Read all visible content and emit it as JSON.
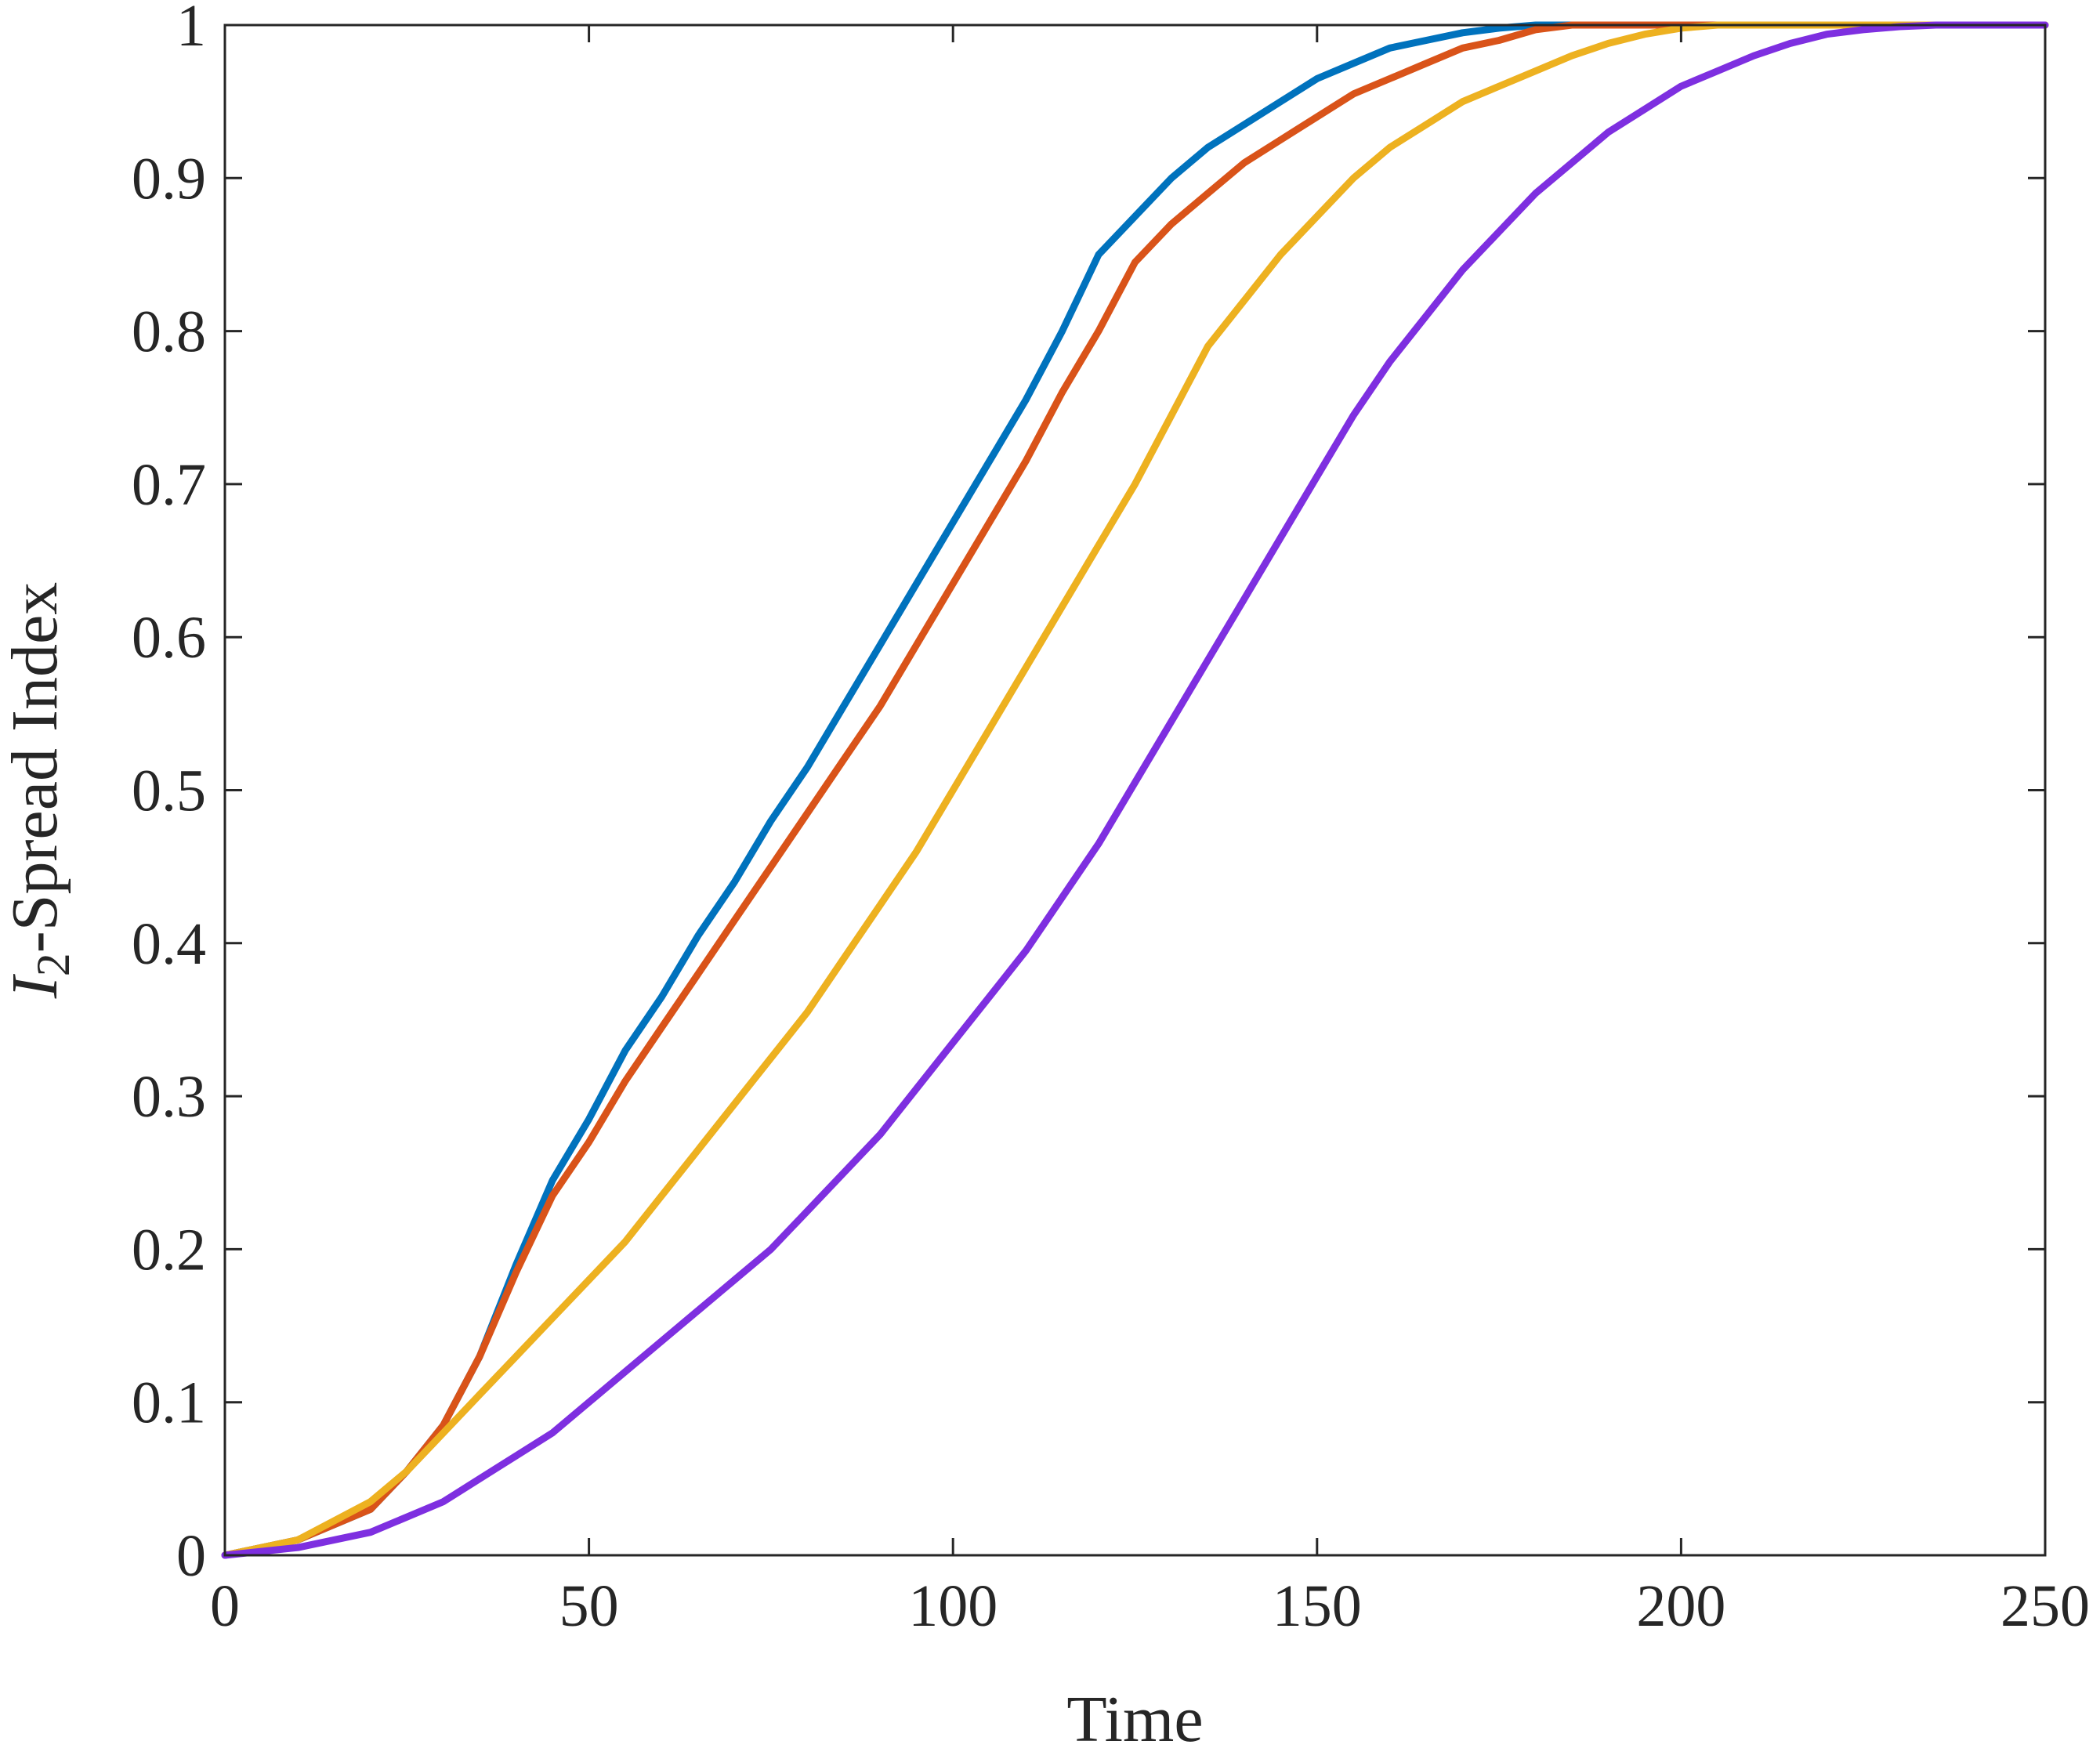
{
  "chart_data": {
    "type": "line",
    "title": "",
    "xlabel": "Time",
    "ylabel": {
      "prefix": "I",
      "subscript": "2",
      "suffix": "-Spread Index"
    },
    "xlim": [
      0,
      250
    ],
    "ylim": [
      0,
      1
    ],
    "x_ticks": [
      0,
      50,
      100,
      150,
      200,
      250
    ],
    "x_tick_labels": [
      "0",
      "50",
      "100",
      "150",
      "200",
      "250"
    ],
    "y_ticks": [
      0,
      0.1,
      0.2,
      0.3,
      0.4,
      0.5,
      0.6,
      0.7,
      0.8,
      0.9,
      1
    ],
    "y_tick_labels": [
      "0",
      "0.1",
      "0.2",
      "0.3",
      "0.4",
      "0.5",
      "0.6",
      "0.7",
      "0.8",
      "0.9",
      "1"
    ],
    "grid": false,
    "legend": null,
    "series": [
      {
        "color": "#0072BD",
        "x": [
          0,
          10,
          20,
          25,
          30,
          35,
          40,
          45,
          50,
          55,
          60,
          65,
          70,
          75,
          80,
          85,
          90,
          95,
          100,
          105,
          110,
          115,
          118,
          120,
          125,
          130,
          135,
          140,
          145,
          150,
          155,
          160,
          165,
          170,
          175,
          180,
          250
        ],
        "y": [
          0,
          0.01,
          0.03,
          0.055,
          0.085,
          0.13,
          0.19,
          0.245,
          0.285,
          0.33,
          0.365,
          0.405,
          0.44,
          0.48,
          0.515,
          0.555,
          0.595,
          0.635,
          0.675,
          0.715,
          0.755,
          0.8,
          0.83,
          0.85,
          0.875,
          0.9,
          0.92,
          0.935,
          0.95,
          0.965,
          0.975,
          0.985,
          0.99,
          0.995,
          0.998,
          1,
          1
        ]
      },
      {
        "color": "#D95319",
        "x": [
          0,
          10,
          20,
          25,
          30,
          35,
          40,
          45,
          50,
          55,
          60,
          65,
          70,
          75,
          80,
          85,
          90,
          95,
          100,
          105,
          110,
          115,
          120,
          125,
          130,
          135,
          140,
          145,
          150,
          155,
          160,
          165,
          170,
          175,
          180,
          185,
          250
        ],
        "y": [
          0,
          0.01,
          0.03,
          0.055,
          0.085,
          0.13,
          0.185,
          0.235,
          0.27,
          0.31,
          0.345,
          0.38,
          0.415,
          0.45,
          0.485,
          0.52,
          0.555,
          0.595,
          0.635,
          0.675,
          0.715,
          0.76,
          0.8,
          0.845,
          0.87,
          0.89,
          0.91,
          0.925,
          0.94,
          0.955,
          0.965,
          0.975,
          0.985,
          0.99,
          0.997,
          1,
          1
        ]
      },
      {
        "color": "#EDB120",
        "x": [
          0,
          10,
          20,
          25,
          30,
          35,
          40,
          45,
          50,
          55,
          60,
          65,
          70,
          75,
          80,
          85,
          90,
          95,
          100,
          105,
          110,
          115,
          120,
          125,
          130,
          135,
          140,
          145,
          150,
          155,
          160,
          165,
          170,
          175,
          180,
          185,
          190,
          195,
          200,
          205,
          210,
          250
        ],
        "y": [
          0,
          0.01,
          0.035,
          0.055,
          0.08,
          0.105,
          0.13,
          0.155,
          0.18,
          0.205,
          0.235,
          0.265,
          0.295,
          0.325,
          0.355,
          0.39,
          0.425,
          0.46,
          0.5,
          0.54,
          0.58,
          0.62,
          0.66,
          0.7,
          0.745,
          0.79,
          0.82,
          0.85,
          0.875,
          0.9,
          0.92,
          0.935,
          0.95,
          0.96,
          0.97,
          0.98,
          0.988,
          0.994,
          0.998,
          1,
          1,
          1
        ]
      },
      {
        "color": "#7E2FE0",
        "x": [
          0,
          10,
          20,
          25,
          30,
          35,
          40,
          45,
          50,
          55,
          60,
          65,
          70,
          75,
          80,
          85,
          90,
          95,
          100,
          105,
          110,
          115,
          120,
          125,
          130,
          135,
          140,
          145,
          150,
          155,
          160,
          165,
          170,
          175,
          180,
          185,
          190,
          195,
          200,
          205,
          210,
          215,
          220,
          225,
          230,
          235,
          240,
          250
        ],
        "y": [
          0,
          0.005,
          0.015,
          0.025,
          0.035,
          0.05,
          0.065,
          0.08,
          0.1,
          0.12,
          0.14,
          0.16,
          0.18,
          0.2,
          0.225,
          0.25,
          0.275,
          0.305,
          0.335,
          0.365,
          0.395,
          0.43,
          0.465,
          0.505,
          0.545,
          0.585,
          0.625,
          0.665,
          0.705,
          0.745,
          0.78,
          0.81,
          0.84,
          0.865,
          0.89,
          0.91,
          0.93,
          0.945,
          0.96,
          0.97,
          0.98,
          0.988,
          0.994,
          0.997,
          0.999,
          1,
          1,
          1
        ]
      }
    ]
  }
}
